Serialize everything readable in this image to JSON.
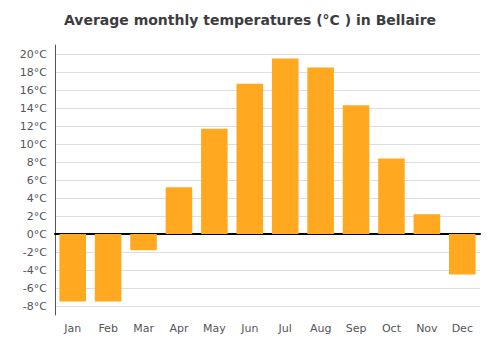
{
  "chart_data": {
    "type": "bar",
    "title": "Average monthly temperatures (°C ) in Bellaire",
    "categories": [
      "Jan",
      "Feb",
      "Mar",
      "Apr",
      "May",
      "Jun",
      "Jul",
      "Aug",
      "Sep",
      "Oct",
      "Nov",
      "Dec"
    ],
    "values": [
      -7.5,
      -7.5,
      -1.8,
      5.2,
      11.7,
      16.7,
      19.5,
      18.5,
      14.3,
      8.4,
      2.2,
      -4.5
    ],
    "color": "#FFA820",
    "ylim": [
      -9,
      21
    ],
    "yticks": [
      {
        "value": -8,
        "label": "-8°C"
      },
      {
        "value": -6,
        "label": "-6°C"
      },
      {
        "value": -4,
        "label": "-4°C"
      },
      {
        "value": -2,
        "label": "-2°C"
      },
      {
        "value": 0,
        "label": "0°C"
      },
      {
        "value": 2,
        "label": "2°C"
      },
      {
        "value": 4,
        "label": "4°C"
      },
      {
        "value": 6,
        "label": "6°C"
      },
      {
        "value": 8,
        "label": "8°C"
      },
      {
        "value": 10,
        "label": "10°C"
      },
      {
        "value": 12,
        "label": "12°C"
      },
      {
        "value": 14,
        "label": "14°C"
      },
      {
        "value": 16,
        "label": "16°C"
      },
      {
        "value": 18,
        "label": "18°C"
      },
      {
        "value": 20,
        "label": "20°C"
      }
    ],
    "grid": true
  }
}
